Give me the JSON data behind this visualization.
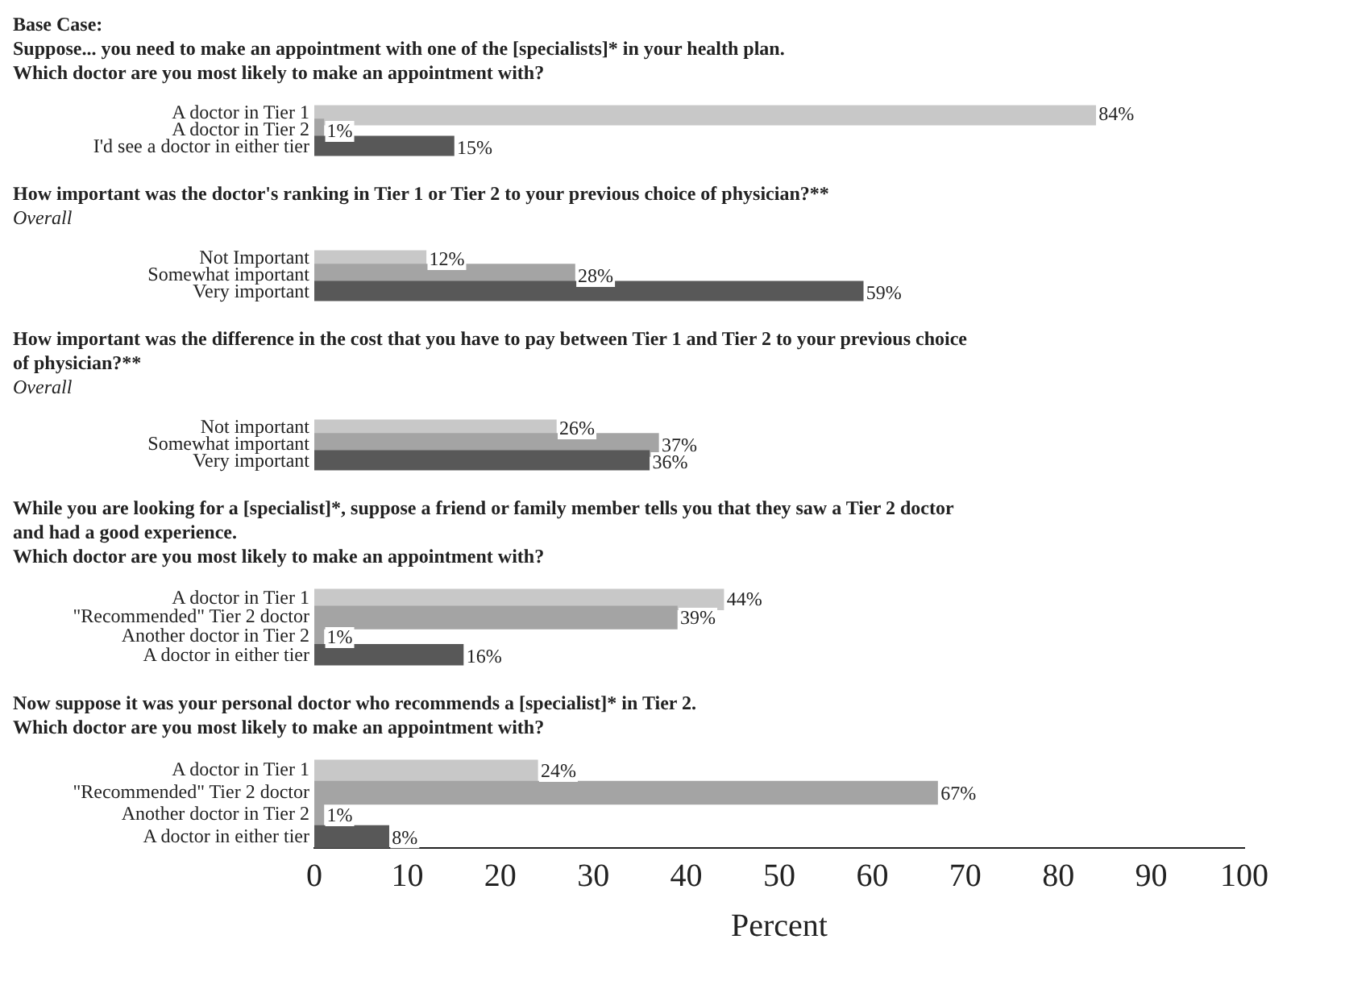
{
  "chart_data": [
    {
      "type": "bar",
      "orientation": "horizontal",
      "title": "Base Case:",
      "subtitle": "Suppose... you need to make an appointment with one of the [specialists]* in your health plan.\nWhich doctor are you most likely to make an appointment with?",
      "categories": [
        "A doctor in Tier 1",
        "A doctor in Tier 2",
        "I'd see a doctor in either tier"
      ],
      "values": [
        84,
        1,
        15
      ],
      "colors": [
        "#c8c8c8",
        "#a4a4a4",
        "#585858"
      ],
      "value_labels": [
        "84%",
        "1%",
        "15%"
      ],
      "xlim": [
        0,
        100
      ],
      "tick_labels": "y",
      "grid": false,
      "legend": false
    },
    {
      "type": "bar",
      "orientation": "horizontal",
      "title": "How important was the doctor's ranking in Tier 1 or Tier 2 to your previous choice of physician?**",
      "subtitle": "Overall",
      "categories": [
        "Not Important",
        "Somewhat important",
        "Very important"
      ],
      "values": [
        12,
        28,
        59
      ],
      "colors": [
        "#c8c8c8",
        "#a4a4a4",
        "#585858"
      ],
      "value_labels": [
        "12%",
        "28%",
        "59%"
      ],
      "xlim": [
        0,
        100
      ],
      "tick_labels": "y",
      "grid": false,
      "legend": false
    },
    {
      "type": "bar",
      "orientation": "horizontal",
      "title": "How important was the difference in the cost that you have to pay between Tier 1 and Tier 2 to your previous choice\nof physician?**",
      "subtitle": "Overall",
      "categories": [
        "Not important",
        "Somewhat important",
        "Very important"
      ],
      "values": [
        26,
        37,
        36
      ],
      "colors": [
        "#c8c8c8",
        "#a4a4a4",
        "#585858"
      ],
      "value_labels": [
        "26%",
        "37%",
        "36%"
      ],
      "xlim": [
        0,
        100
      ],
      "tick_labels": "y",
      "grid": false,
      "legend": false
    },
    {
      "type": "bar",
      "orientation": "horizontal",
      "title": "While you are looking for a [specialist]*, suppose a friend or family member tells you that they saw a Tier 2 doctor\nand had a good experience.\nWhich doctor are you most likely to make an appointment with?",
      "categories": [
        "A doctor in Tier 1",
        "\"Recommended\" Tier 2 doctor",
        "Another doctor in Tier 2",
        "A doctor in either tier"
      ],
      "values": [
        44,
        39,
        1,
        16
      ],
      "colors": [
        "#c8c8c8",
        "#a4a4a4",
        "#a4a4a4",
        "#585858"
      ],
      "value_labels": [
        "44%",
        "39%",
        "1%",
        "16%"
      ],
      "xlim": [
        0,
        100
      ],
      "tick_labels": "y",
      "grid": false,
      "legend": false
    },
    {
      "type": "bar",
      "orientation": "horizontal",
      "title": "Now suppose it was your personal doctor who recommends a [specialist]* in Tier 2.\nWhich doctor are you most likely to make an appointment with?",
      "categories": [
        "A doctor in Tier 1",
        "\"Recommended\" Tier 2 doctor",
        "Another doctor in Tier 2",
        "A doctor in either tier"
      ],
      "values": [
        24,
        67,
        1,
        8
      ],
      "colors": [
        "#c8c8c8",
        "#a4a4a4",
        "#a4a4a4",
        "#585858"
      ],
      "value_labels": [
        "24%",
        "67%",
        "1%",
        "8%"
      ],
      "xlim": [
        0,
        100
      ],
      "xticks": [
        0,
        10,
        20,
        30,
        40,
        50,
        60,
        70,
        80,
        90,
        100
      ],
      "xlabel": "Percent",
      "grid": false,
      "legend": false
    }
  ]
}
